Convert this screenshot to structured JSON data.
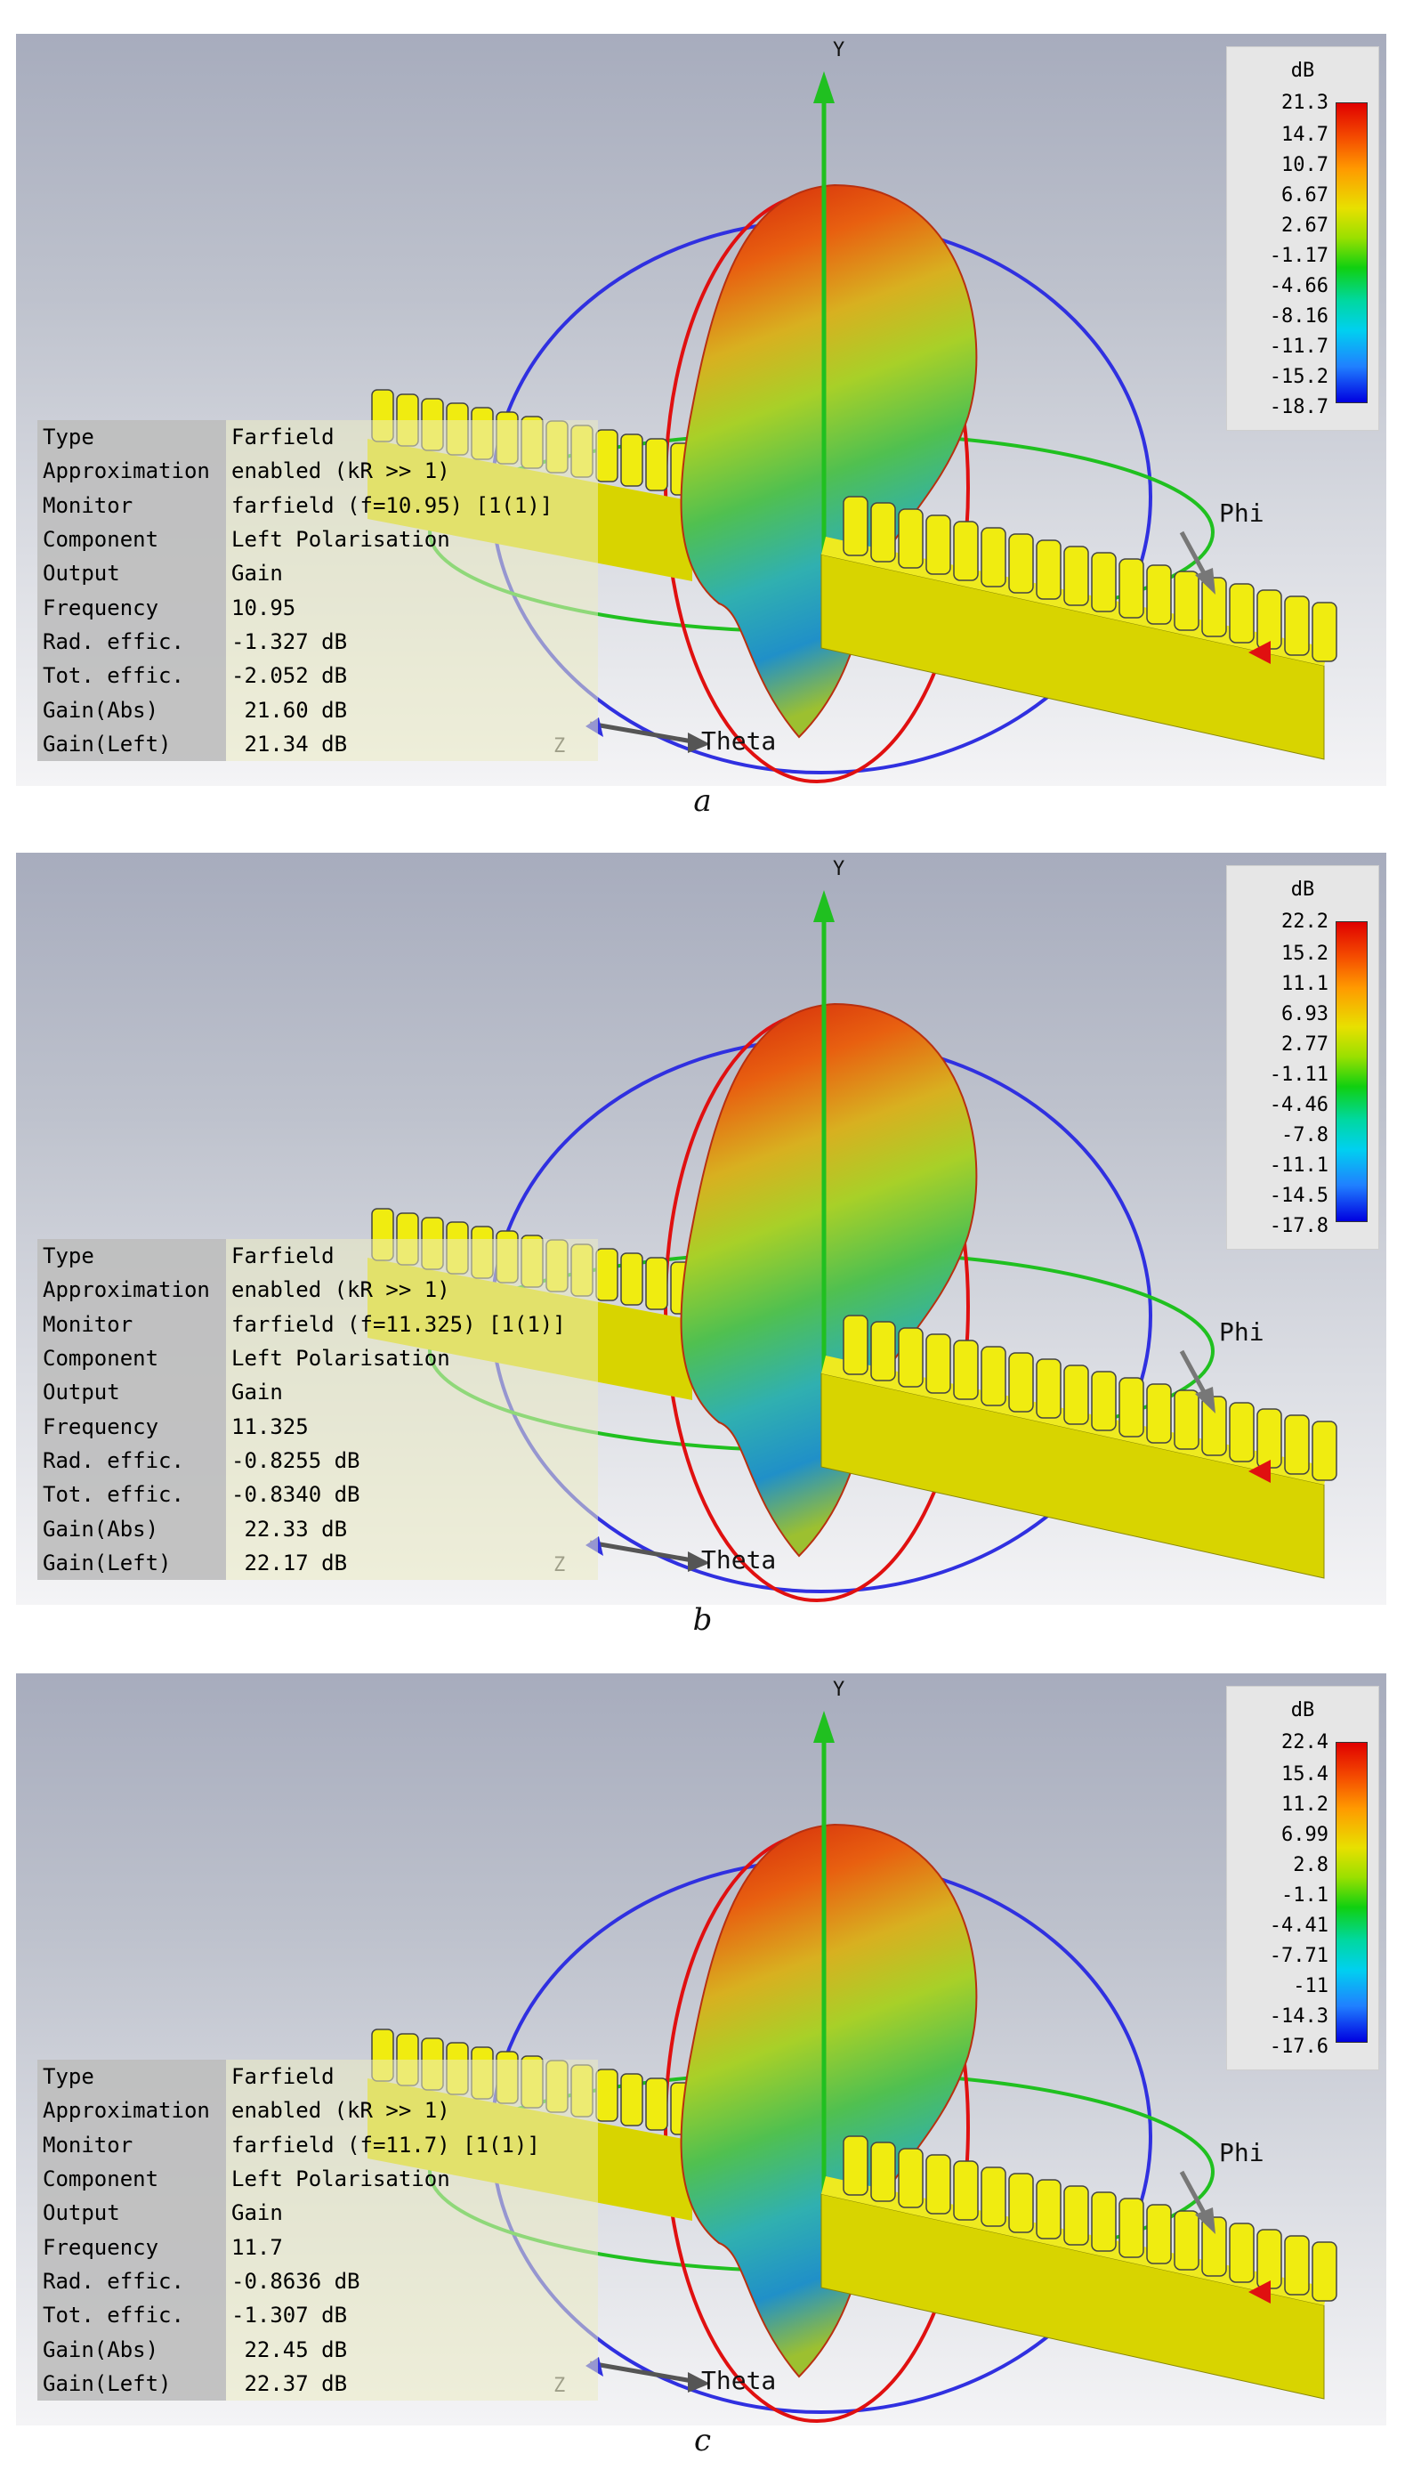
{
  "panels": [
    {
      "caption": "a",
      "legend": {
        "unit": "dB",
        "ticks": [
          "21.3",
          "14.7",
          "10.7",
          "6.67",
          "2.67",
          "-1.17",
          "-4.66",
          "-8.16",
          "-11.7",
          "-15.2",
          "-18.7"
        ]
      },
      "axes": {
        "y": "Y",
        "z": "Z",
        "theta": "Theta",
        "phi": "Phi"
      },
      "info": [
        {
          "key": "Type",
          "value": "Farfield"
        },
        {
          "key": "Approximation",
          "value": "enabled (kR >> 1)"
        },
        {
          "key": "Monitor",
          "value": "farfield (f=10.95) [1(1)]"
        },
        {
          "key": "Component",
          "value": "Left Polarisation"
        },
        {
          "key": "Output",
          "value": "Gain"
        },
        {
          "key": "Frequency",
          "value": "10.95"
        },
        {
          "key": "Rad. effic.",
          "value": "-1.327 dB"
        },
        {
          "key": "Tot. effic.",
          "value": "-2.052 dB"
        },
        {
          "key": "Gain(Abs)",
          "value": " 21.60 dB"
        },
        {
          "key": "Gain(Left)",
          "value": " 21.34 dB"
        }
      ]
    },
    {
      "caption": "b",
      "legend": {
        "unit": "dB",
        "ticks": [
          "22.2",
          "15.2",
          "11.1",
          "6.93",
          "2.77",
          "-1.11",
          "-4.46",
          "-7.8",
          "-11.1",
          "-14.5",
          "-17.8"
        ]
      },
      "axes": {
        "y": "Y",
        "z": "Z",
        "theta": "Theta",
        "phi": "Phi"
      },
      "info": [
        {
          "key": "Type",
          "value": "Farfield"
        },
        {
          "key": "Approximation",
          "value": "enabled (kR >> 1)"
        },
        {
          "key": "Monitor",
          "value": "farfield (f=11.325) [1(1)]"
        },
        {
          "key": "Component",
          "value": "Left Polarisation"
        },
        {
          "key": "Output",
          "value": "Gain"
        },
        {
          "key": "Frequency",
          "value": "11.325"
        },
        {
          "key": "Rad. effic.",
          "value": "-0.8255 dB"
        },
        {
          "key": "Tot. effic.",
          "value": "-0.8340 dB"
        },
        {
          "key": "Gain(Abs)",
          "value": " 22.33 dB"
        },
        {
          "key": "Gain(Left)",
          "value": " 22.17 dB"
        }
      ]
    },
    {
      "caption": "c",
      "legend": {
        "unit": "dB",
        "ticks": [
          "22.4",
          "15.4",
          "11.2",
          "6.99",
          "2.8",
          "-1.1",
          "-4.41",
          "-7.71",
          "-11",
          "-14.3",
          "-17.6"
        ]
      },
      "axes": {
        "y": "Y",
        "z": "Z",
        "theta": "Theta",
        "phi": "Phi"
      },
      "info": [
        {
          "key": "Type",
          "value": "Farfield"
        },
        {
          "key": "Approximation",
          "value": "enabled (kR >> 1)"
        },
        {
          "key": "Monitor",
          "value": "farfield (f=11.7) [1(1)]"
        },
        {
          "key": "Component",
          "value": "Left Polarisation"
        },
        {
          "key": "Output",
          "value": "Gain"
        },
        {
          "key": "Frequency",
          "value": "11.7"
        },
        {
          "key": "Rad. effic.",
          "value": "-0.8636 dB"
        },
        {
          "key": "Tot. effic.",
          "value": "-1.307 dB"
        },
        {
          "key": "Gain(Abs)",
          "value": " 22.45 dB"
        },
        {
          "key": "Gain(Left)",
          "value": " 22.37 dB"
        }
      ]
    }
  ],
  "colors": {
    "pattern_top": "#d42a10",
    "pattern_mid": "#8fd028",
    "pattern_low": "#20a8c8",
    "array": "#e6e000",
    "axis_y": "#20c020",
    "theta_ring": "#3030e0",
    "phi_ring": "#20c020",
    "elev_ring": "#e01010"
  }
}
